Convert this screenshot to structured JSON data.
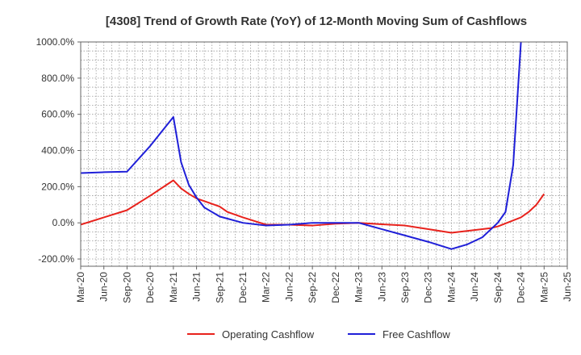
{
  "chart_data": {
    "type": "line",
    "title": "[4308]  Trend of Growth Rate (YoY) of 12-Month Moving Sum of Cashflows",
    "xlabel": "",
    "ylabel": "",
    "y_unit_suffix": "%",
    "ylim": [
      -240,
      1000
    ],
    "yticks": [
      -200,
      0,
      200,
      400,
      600,
      800,
      1000
    ],
    "ytick_labels": [
      "-200.0%",
      "0.0%",
      "200.0%",
      "400.0%",
      "600.0%",
      "800.0%",
      "1000.0%"
    ],
    "x_range": [
      "2020-03",
      "2025-06"
    ],
    "xtick_labels": [
      "Mar-20",
      "Jun-20",
      "Sep-20",
      "Dec-20",
      "Mar-21",
      "Jun-21",
      "Sep-21",
      "Dec-21",
      "Mar-22",
      "Jun-22",
      "Sep-22",
      "Dec-22",
      "Mar-23",
      "Jun-23",
      "Sep-23",
      "Dec-23",
      "Mar-24",
      "Jun-24",
      "Sep-24",
      "Dec-24",
      "Mar-25",
      "Jun-25"
    ],
    "grid": true,
    "legend_position": "bottom-center",
    "series": [
      {
        "name": "Operating Cashflow",
        "color": "#e8221c",
        "points": [
          [
            "2020-03",
            -10
          ],
          [
            "2020-06",
            30
          ],
          [
            "2020-09",
            70
          ],
          [
            "2020-12",
            150
          ],
          [
            "2021-03",
            235
          ],
          [
            "2021-04",
            190
          ],
          [
            "2021-05",
            160
          ],
          [
            "2021-06",
            135
          ],
          [
            "2021-09",
            90
          ],
          [
            "2021-10",
            60
          ],
          [
            "2021-12",
            30
          ],
          [
            "2022-03",
            -10
          ],
          [
            "2022-06",
            -10
          ],
          [
            "2022-09",
            -15
          ],
          [
            "2022-12",
            -5
          ],
          [
            "2023-03",
            0
          ],
          [
            "2023-06",
            -8
          ],
          [
            "2023-09",
            -15
          ],
          [
            "2023-12",
            -35
          ],
          [
            "2024-03",
            -55
          ],
          [
            "2024-06",
            -40
          ],
          [
            "2024-08",
            -30
          ],
          [
            "2024-09",
            -20
          ],
          [
            "2024-12",
            30
          ],
          [
            "2025-01",
            60
          ],
          [
            "2025-02",
            100
          ],
          [
            "2025-03",
            160
          ]
        ]
      },
      {
        "name": "Free Cashflow",
        "color": "#1f1fd8",
        "points": [
          [
            "2020-03",
            275
          ],
          [
            "2020-06",
            280
          ],
          [
            "2020-09",
            283
          ],
          [
            "2020-12",
            425
          ],
          [
            "2021-03",
            585
          ],
          [
            "2021-04",
            335
          ],
          [
            "2021-05",
            210
          ],
          [
            "2021-06",
            140
          ],
          [
            "2021-07",
            85
          ],
          [
            "2021-09",
            35
          ],
          [
            "2021-12",
            0
          ],
          [
            "2022-03",
            -15
          ],
          [
            "2022-06",
            -10
          ],
          [
            "2022-09",
            0
          ],
          [
            "2022-12",
            0
          ],
          [
            "2023-03",
            0
          ],
          [
            "2023-06",
            -35
          ],
          [
            "2023-09",
            -70
          ],
          [
            "2023-12",
            -105
          ],
          [
            "2024-03",
            -145
          ],
          [
            "2024-05",
            -120
          ],
          [
            "2024-07",
            -80
          ],
          [
            "2024-09",
            0
          ],
          [
            "2024-10",
            60
          ],
          [
            "2024-11",
            320
          ],
          [
            "2024-12",
            1000
          ]
        ]
      }
    ]
  }
}
